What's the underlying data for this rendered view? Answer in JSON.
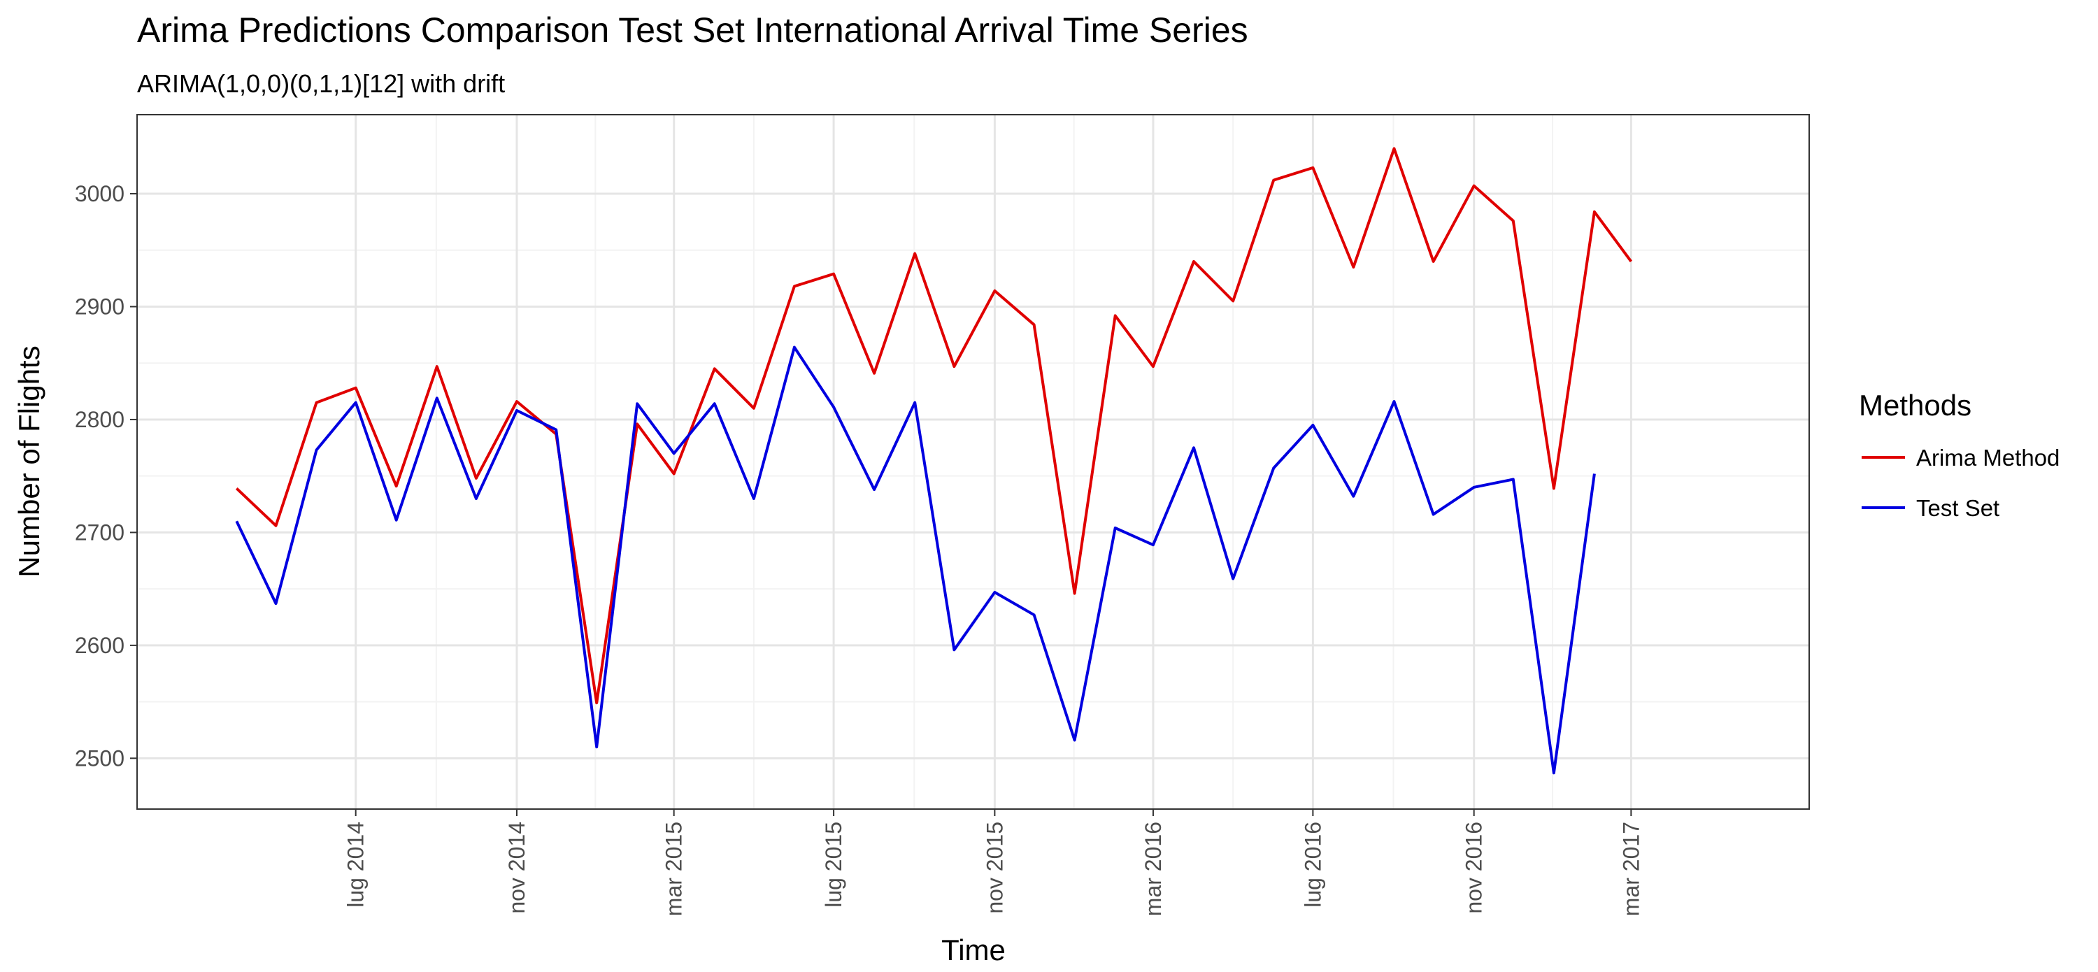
{
  "chart_data": {
    "type": "line",
    "title": "Arima Predictions Comparison Test Set International Arrival Time Series",
    "subtitle": "ARIMA(1,0,0)(0,1,1)[12] with drift",
    "xlabel": "Time",
    "ylabel": "Number of Flights",
    "x_ticks": [
      {
        "label": "lug 2014",
        "date": "2014-07-01"
      },
      {
        "label": "nov 2014",
        "date": "2014-11-01"
      },
      {
        "label": "mar 2015",
        "date": "2015-03-01"
      },
      {
        "label": "lug 2015",
        "date": "2015-07-01"
      },
      {
        "label": "nov 2015",
        "date": "2015-11-01"
      },
      {
        "label": "mar 2016",
        "date": "2016-03-01"
      },
      {
        "label": "lug 2016",
        "date": "2016-07-01"
      },
      {
        "label": "nov 2016",
        "date": "2016-11-01"
      },
      {
        "label": "mar 2017",
        "date": "2017-03-01"
      }
    ],
    "y_ticks": [
      2500,
      2600,
      2700,
      2800,
      2900,
      3000
    ],
    "xlim": [
      "2014-01-15",
      "2017-07-15"
    ],
    "ylim": [
      2455,
      3070
    ],
    "grid": true,
    "legend": {
      "title": "Methods",
      "position": "right"
    },
    "series": [
      {
        "name": "Arima Method",
        "color": "#e00000",
        "points": [
          [
            "2014-04-01",
            2739
          ],
          [
            "2014-05-01",
            2706
          ],
          [
            "2014-06-01",
            2815
          ],
          [
            "2014-07-01",
            2828
          ],
          [
            "2014-08-01",
            2741
          ],
          [
            "2014-09-01",
            2847
          ],
          [
            "2014-10-01",
            2748
          ],
          [
            "2014-11-01",
            2816
          ],
          [
            "2014-12-01",
            2787
          ],
          [
            "2015-01-01",
            2549
          ],
          [
            "2015-02-01",
            2796
          ],
          [
            "2015-03-01",
            2752
          ],
          [
            "2015-04-01",
            2845
          ],
          [
            "2015-05-01",
            2810
          ],
          [
            "2015-06-01",
            2918
          ],
          [
            "2015-07-01",
            2929
          ],
          [
            "2015-08-01",
            2841
          ],
          [
            "2015-09-01",
            2947
          ],
          [
            "2015-10-01",
            2847
          ],
          [
            "2015-11-01",
            2914
          ],
          [
            "2015-12-01",
            2884
          ],
          [
            "2016-01-01",
            2646
          ],
          [
            "2016-02-01",
            2892
          ],
          [
            "2016-03-01",
            2847
          ],
          [
            "2016-04-01",
            2940
          ],
          [
            "2016-05-01",
            2905
          ],
          [
            "2016-06-01",
            3012
          ],
          [
            "2016-07-01",
            3023
          ],
          [
            "2016-08-01",
            2935
          ],
          [
            "2016-09-01",
            3040
          ],
          [
            "2016-10-01",
            2940
          ],
          [
            "2016-11-01",
            3007
          ],
          [
            "2016-12-01",
            2976
          ],
          [
            "2017-01-01",
            2739
          ],
          [
            "2017-02-01",
            2984
          ],
          [
            "2017-03-01",
            2940
          ]
        ]
      },
      {
        "name": "Test Set",
        "color": "#0000e0",
        "points": [
          [
            "2014-04-01",
            2710
          ],
          [
            "2014-05-01",
            2637
          ],
          [
            "2014-06-01",
            2773
          ],
          [
            "2014-07-01",
            2815
          ],
          [
            "2014-08-01",
            2711
          ],
          [
            "2014-09-01",
            2819
          ],
          [
            "2014-10-01",
            2730
          ],
          [
            "2014-11-01",
            2808
          ],
          [
            "2014-12-01",
            2791
          ],
          [
            "2015-01-01",
            2510
          ],
          [
            "2015-02-01",
            2814
          ],
          [
            "2015-03-01",
            2770
          ],
          [
            "2015-04-01",
            2814
          ],
          [
            "2015-05-01",
            2730
          ],
          [
            "2015-06-01",
            2864
          ],
          [
            "2015-07-01",
            2811
          ],
          [
            "2015-08-01",
            2738
          ],
          [
            "2015-09-01",
            2815
          ],
          [
            "2015-10-01",
            2596
          ],
          [
            "2015-11-01",
            2647
          ],
          [
            "2015-12-01",
            2627
          ],
          [
            "2016-01-01",
            2516
          ],
          [
            "2016-02-01",
            2704
          ],
          [
            "2016-03-01",
            2689
          ],
          [
            "2016-04-01",
            2775
          ],
          [
            "2016-05-01",
            2659
          ],
          [
            "2016-06-01",
            2757
          ],
          [
            "2016-07-01",
            2795
          ],
          [
            "2016-08-01",
            2732
          ],
          [
            "2016-09-01",
            2816
          ],
          [
            "2016-10-01",
            2716
          ],
          [
            "2016-11-01",
            2740
          ],
          [
            "2016-12-01",
            2747
          ],
          [
            "2017-01-01",
            2487
          ],
          [
            "2017-02-01",
            2752
          ]
        ]
      }
    ]
  }
}
